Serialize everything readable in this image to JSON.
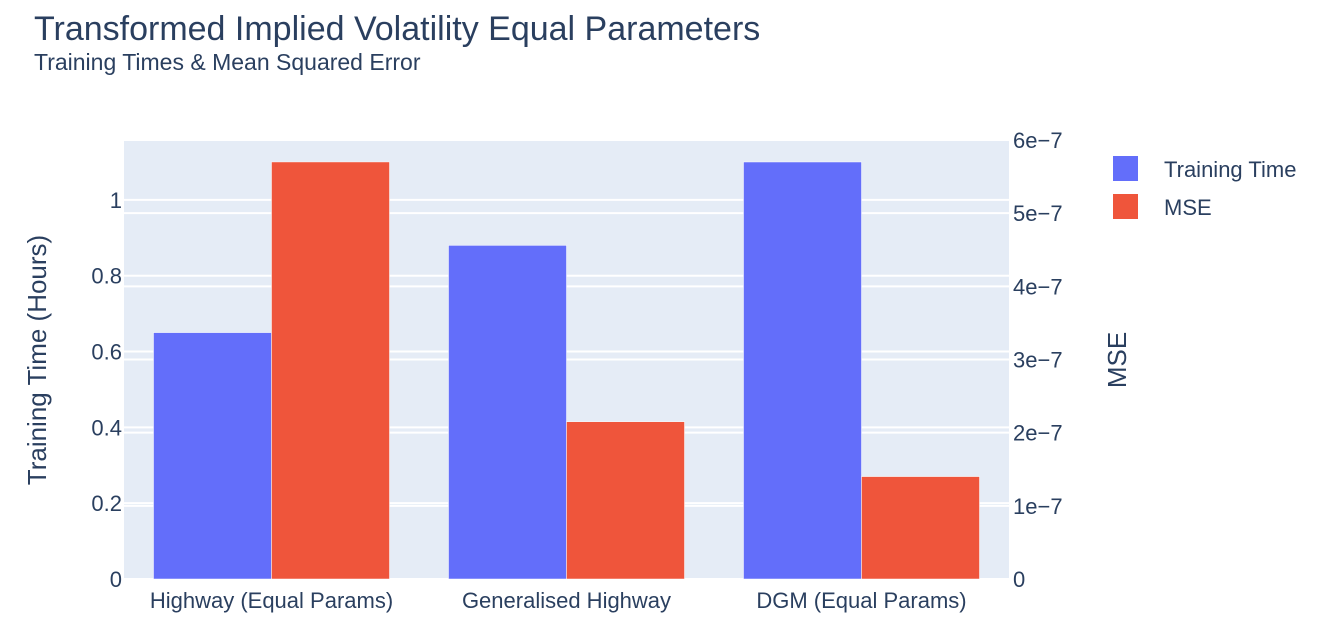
{
  "chart_data": {
    "type": "bar",
    "title": "Transformed Implied Volatility Equal Parameters",
    "subtitle": "Training Times & Mean Squared Error",
    "categories": [
      "Highway (Equal Params)",
      "Generalised Highway",
      "DGM (Equal Params)"
    ],
    "series": [
      {
        "name": "Training Time",
        "axis": "left",
        "color": "#636efa",
        "values": [
          0.65,
          0.88,
          1.1
        ]
      },
      {
        "name": "MSE",
        "axis": "right",
        "color": "#ef553b",
        "values": [
          5.7e-07,
          2.15e-07,
          1.4e-07
        ]
      }
    ],
    "ylabel": "Training Time (Hours)",
    "ylim": [
      0,
      1.158
    ],
    "yticks": [
      0,
      0.2,
      0.4,
      0.6,
      0.8,
      1
    ],
    "yticklabels": [
      "0",
      "0.2",
      "0.4",
      "0.6",
      "0.8",
      "1"
    ],
    "y2label": "MSE",
    "y2lim": [
      0,
      6e-07
    ],
    "y2ticks": [
      0,
      1e-07,
      2e-07,
      3e-07,
      4e-07,
      5e-07,
      6e-07
    ],
    "y2ticklabels": [
      "0",
      "1e−7",
      "2e−7",
      "3e−7",
      "4e−7",
      "5e−7",
      "6e−7"
    ],
    "legend_position": "top-right",
    "grid": true,
    "plot_background": "#e5ecf6"
  }
}
